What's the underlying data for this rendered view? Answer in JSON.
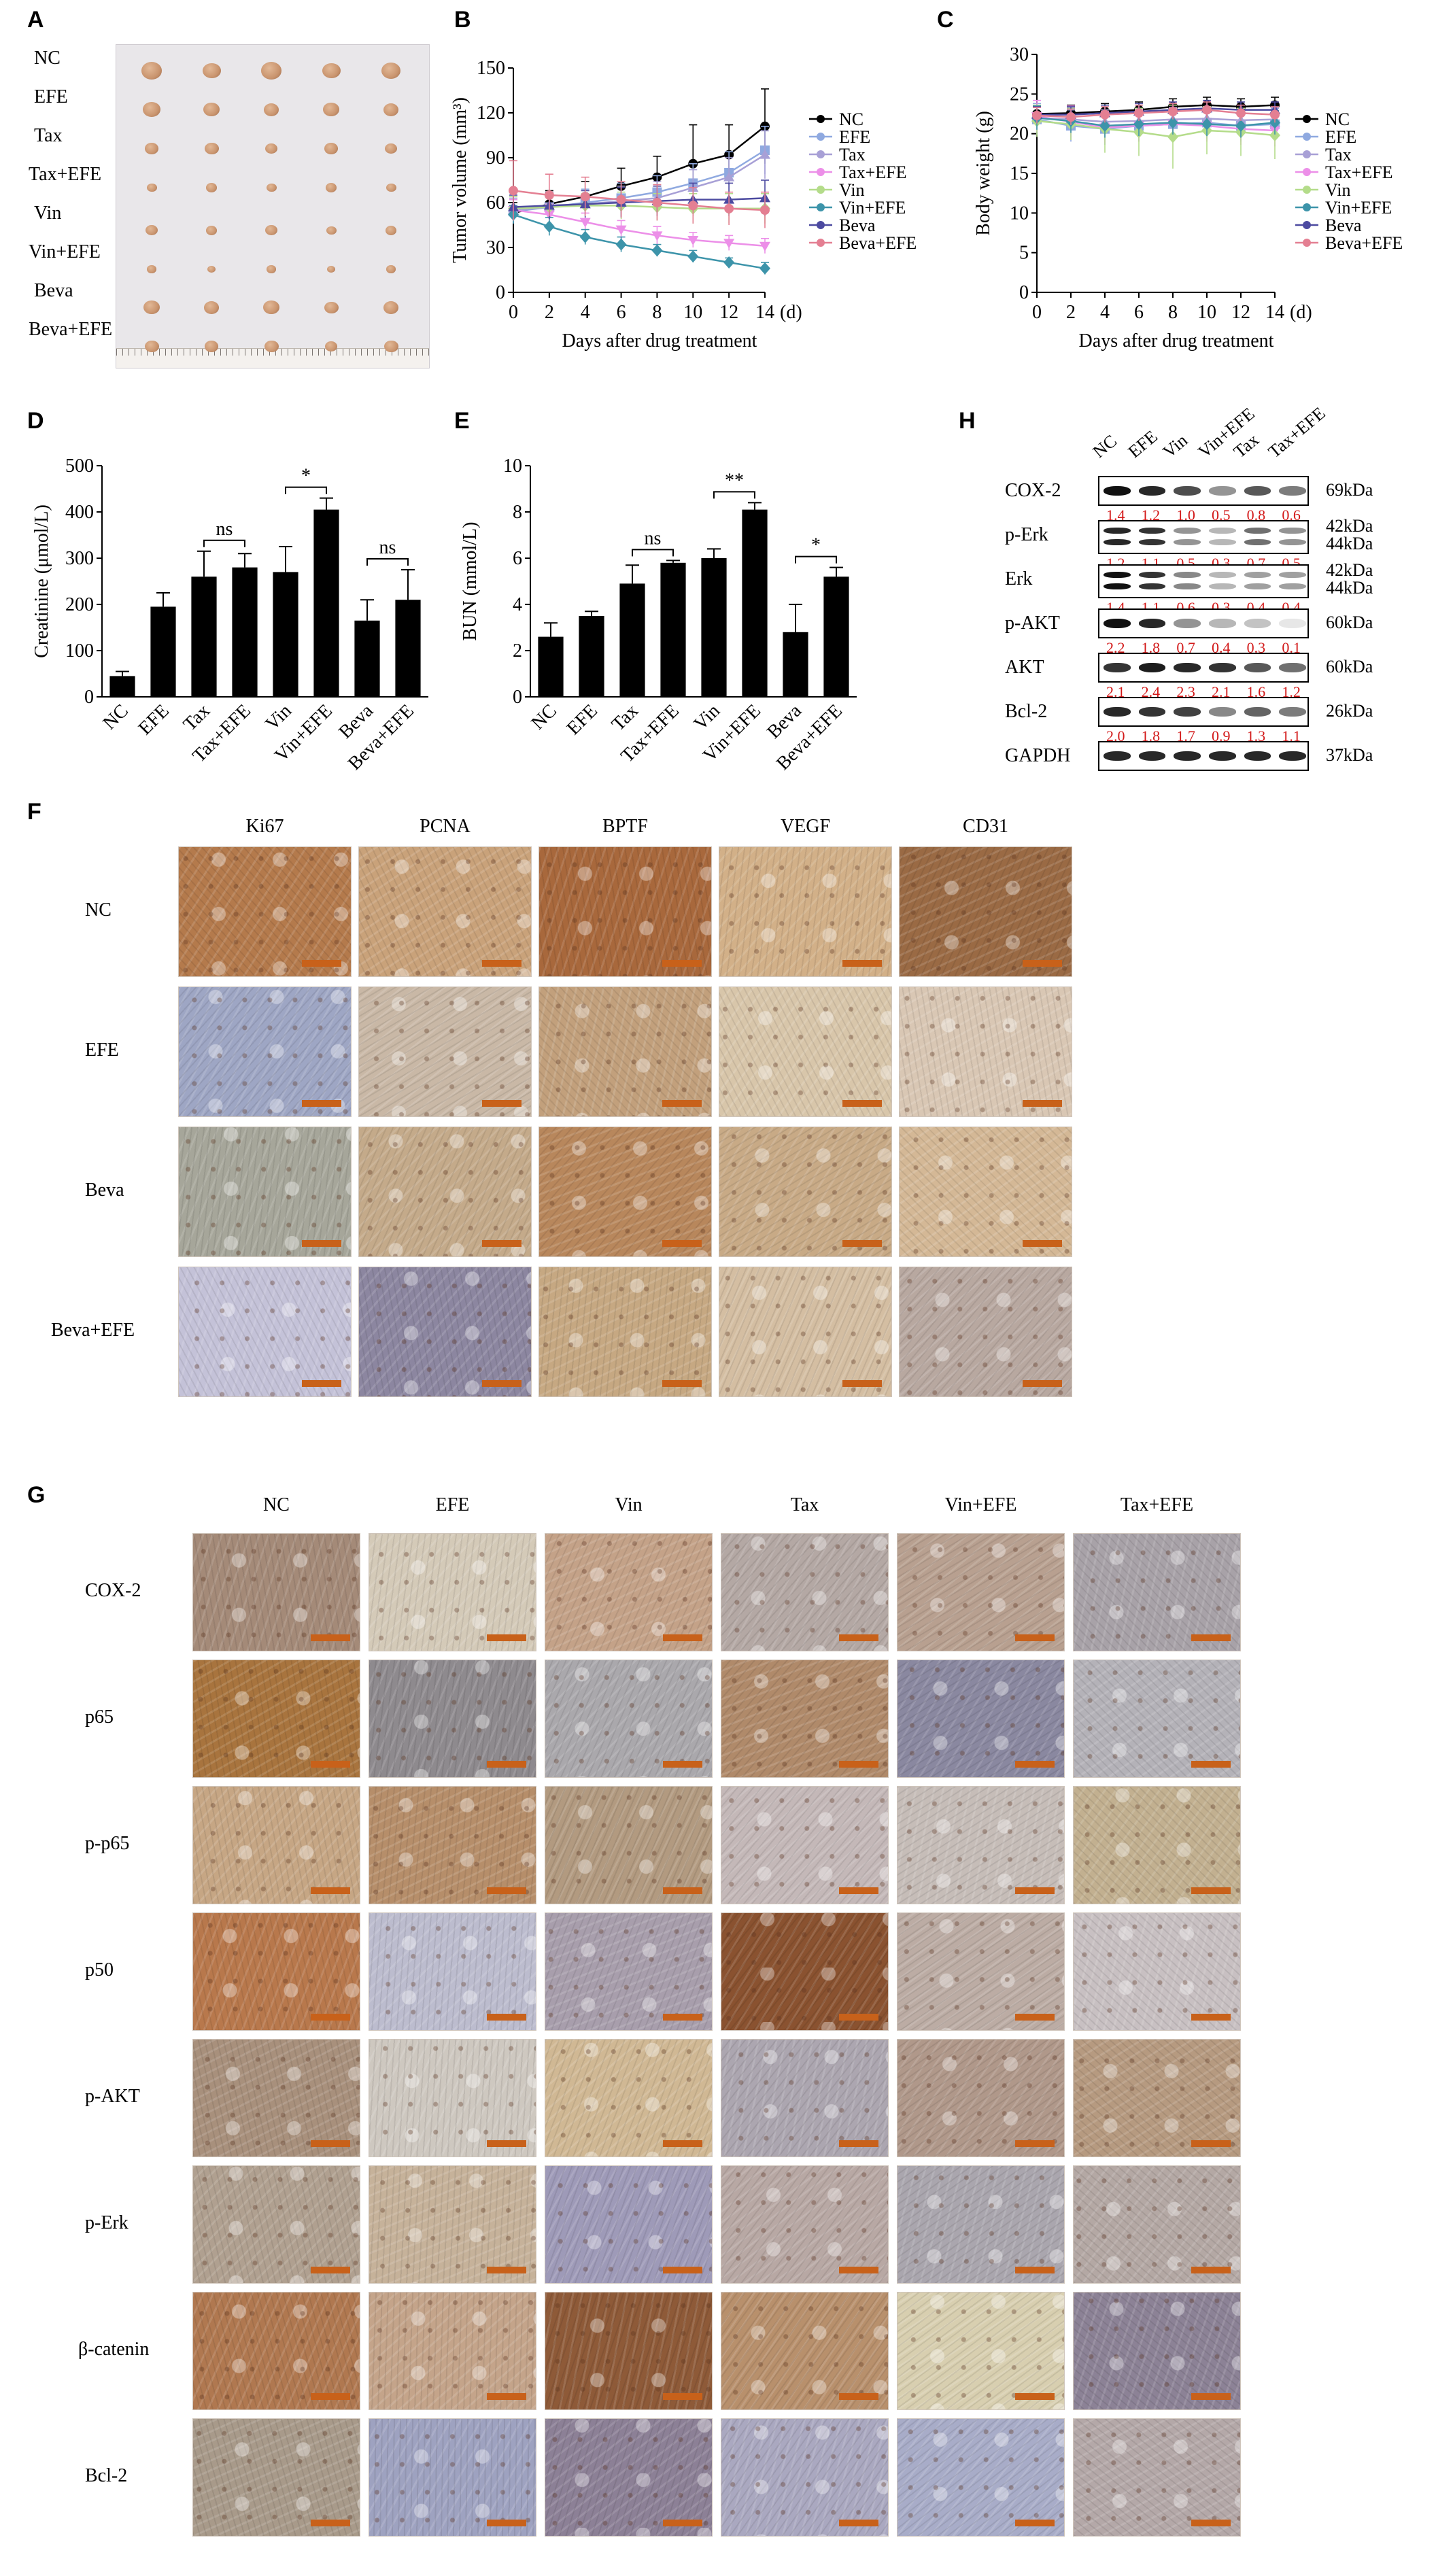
{
  "panels": {
    "A": "A",
    "B": "B",
    "C": "C",
    "D": "D",
    "E": "E",
    "F": "F",
    "G": "G",
    "H": "H"
  },
  "panel_a": {
    "groups": [
      "NC",
      "EFE",
      "Tax",
      "Tax+EFE",
      "Vin",
      "Vin+EFE",
      "Beva",
      "Beva+EFE"
    ],
    "tumor_sizes": [
      [
        1.0,
        0.9,
        1.0,
        0.9,
        0.95
      ],
      [
        0.85,
        0.8,
        0.75,
        0.8,
        0.75
      ],
      [
        0.65,
        0.7,
        0.6,
        0.65,
        0.6
      ],
      [
        0.5,
        0.55,
        0.5,
        0.55,
        0.5
      ],
      [
        0.6,
        0.55,
        0.6,
        0.5,
        0.55
      ],
      [
        0.45,
        0.4,
        0.45,
        0.4,
        0.45
      ],
      [
        0.8,
        0.75,
        0.8,
        0.7,
        0.75
      ],
      [
        0.7,
        0.65,
        0.7,
        0.6,
        0.7
      ]
    ],
    "colors": {
      "paper": "#e9e7ea",
      "tumor": "#c9946e",
      "ruler": "#f4f1ee"
    }
  },
  "legend": [
    "NC",
    "EFE",
    "Tax",
    "Tax+EFE",
    "Vin",
    "Vin+EFE",
    "Beva",
    "Beva+EFE"
  ],
  "series_colors": [
    "#000000",
    "#8fa9e0",
    "#a8a0d6",
    "#ec8fe8",
    "#b4dc8a",
    "#3d94aa",
    "#4c4aa0",
    "#e47f92"
  ],
  "chart_data": [
    {
      "id": "B",
      "type": "line",
      "ylabel": "Tumor volume  (mm³)",
      "xlabel": "Days after drug treatment",
      "x_unit": "(d)",
      "x": [
        0,
        2,
        4,
        6,
        8,
        10,
        12,
        14
      ],
      "xlim": [
        0,
        14
      ],
      "ylim": [
        0,
        150
      ],
      "yticks": [
        0,
        30,
        60,
        90,
        120,
        150
      ],
      "series": [
        {
          "name": "NC",
          "values": [
            53,
            59,
            64,
            71,
            77,
            86,
            92,
            111
          ],
          "err": [
            7,
            9,
            10,
            12,
            14,
            26,
            20,
            25
          ]
        },
        {
          "name": "EFE",
          "values": [
            54,
            57,
            60,
            63,
            67,
            73,
            80,
            95
          ],
          "err": [
            8,
            9,
            9,
            10,
            11,
            13,
            14,
            16
          ]
        },
        {
          "name": "Tax",
          "values": [
            55,
            57,
            59,
            61,
            63,
            70,
            77,
            92
          ],
          "err": [
            8,
            8,
            9,
            10,
            11,
            12,
            13,
            16
          ]
        },
        {
          "name": "Tax+EFE",
          "values": [
            55,
            52,
            47,
            42,
            38,
            35,
            33,
            31
          ],
          "err": [
            7,
            7,
            6,
            6,
            6,
            5,
            5,
            5
          ]
        },
        {
          "name": "Vin",
          "values": [
            56,
            57,
            58,
            58,
            57,
            56,
            56,
            56
          ],
          "err": [
            8,
            8,
            8,
            9,
            9,
            10,
            10,
            10
          ]
        },
        {
          "name": "Vin+EFE",
          "values": [
            52,
            44,
            37,
            32,
            28,
            24,
            20,
            16
          ],
          "err": [
            6,
            6,
            5,
            5,
            4,
            4,
            3,
            4
          ]
        },
        {
          "name": "Beva",
          "values": [
            57,
            58,
            59,
            60,
            61,
            62,
            62,
            63
          ],
          "err": [
            8,
            9,
            9,
            10,
            10,
            11,
            11,
            12
          ]
        },
        {
          "name": "Beva+EFE",
          "values": [
            68,
            65,
            64,
            62,
            60,
            58,
            56,
            55
          ],
          "err": [
            20,
            14,
            13,
            12,
            12,
            12,
            11,
            12
          ]
        }
      ]
    },
    {
      "id": "C",
      "type": "line",
      "ylabel": "Body weight  (g)",
      "xlabel": "Days after drug treatment",
      "x_unit": "(d)",
      "x": [
        0,
        2,
        4,
        6,
        8,
        10,
        12,
        14
      ],
      "xlim": [
        0,
        14
      ],
      "ylim": [
        0,
        30
      ],
      "yticks": [
        0,
        5,
        10,
        15,
        20,
        25,
        30
      ],
      "series": [
        {
          "name": "NC",
          "values": [
            22.5,
            22.6,
            22.8,
            23.0,
            23.4,
            23.6,
            23.4,
            23.6
          ],
          "err": [
            1,
            1,
            1,
            1,
            1,
            1,
            1,
            1
          ]
        },
        {
          "name": "EFE",
          "values": [
            21.8,
            21.0,
            20.6,
            21.0,
            21.2,
            21.4,
            21.0,
            21.2
          ],
          "err": [
            2,
            2,
            2,
            2,
            2,
            2,
            2,
            2
          ]
        },
        {
          "name": "Tax",
          "values": [
            22.0,
            21.8,
            21.5,
            21.6,
            21.8,
            21.9,
            21.7,
            21.8
          ],
          "err": [
            1.5,
            1.5,
            1.5,
            1.5,
            1.5,
            1.5,
            1.5,
            1.5
          ]
        },
        {
          "name": "Tax+EFE",
          "values": [
            22.2,
            21.5,
            20.8,
            21.0,
            21.2,
            21.0,
            20.6,
            20.4
          ],
          "err": [
            2,
            2,
            2,
            2,
            2,
            2,
            2,
            2
          ]
        },
        {
          "name": "Vin",
          "values": [
            21.6,
            21.2,
            20.6,
            20.2,
            19.6,
            20.4,
            20.2,
            19.8
          ],
          "err": [
            2,
            2,
            3,
            3,
            4,
            3,
            3,
            3
          ]
        },
        {
          "name": "Vin+EFE",
          "values": [
            22.0,
            21.6,
            21.0,
            21.2,
            21.4,
            21.2,
            21.0,
            21.4
          ],
          "err": [
            1.5,
            1.5,
            1.5,
            1.5,
            1.5,
            1.5,
            1.5,
            1.5
          ]
        },
        {
          "name": "Beva",
          "values": [
            22.4,
            22.4,
            22.6,
            22.8,
            23.0,
            23.2,
            23.0,
            23.0
          ],
          "err": [
            1,
            1,
            1,
            1,
            1,
            1,
            1,
            1
          ]
        },
        {
          "name": "Beva+EFE",
          "values": [
            22.3,
            22.1,
            22.4,
            22.6,
            22.8,
            23.0,
            22.6,
            22.4
          ],
          "err": [
            1,
            1,
            1,
            1,
            1,
            1,
            1,
            1
          ]
        }
      ]
    },
    {
      "id": "D",
      "type": "bar",
      "ylabel": "Creatinine  (μmol/L)",
      "categories": [
        "NC",
        "EFE",
        "Tax",
        "Tax+EFE",
        "Vin",
        "Vin+EFE",
        "Beva",
        "Beva+EFE"
      ],
      "values": [
        45,
        195,
        260,
        280,
        270,
        405,
        165,
        210
      ],
      "err": [
        10,
        30,
        55,
        30,
        55,
        25,
        45,
        65
      ],
      "ylim": [
        0,
        500
      ],
      "yticks": [
        0,
        100,
        200,
        300,
        400,
        500
      ],
      "sig": [
        {
          "from": 2,
          "to": 3,
          "label": "ns"
        },
        {
          "from": 4,
          "to": 5,
          "label": "*"
        },
        {
          "from": 6,
          "to": 7,
          "label": "ns"
        }
      ]
    },
    {
      "id": "E",
      "type": "bar",
      "ylabel": "BUN  (mmol/L)",
      "categories": [
        "NC",
        "EFE",
        "Tax",
        "Tax+EFE",
        "Vin",
        "Vin+EFE",
        "Beva",
        "Beva+EFE"
      ],
      "values": [
        2.6,
        3.5,
        4.9,
        5.8,
        6.0,
        8.1,
        2.8,
        5.2
      ],
      "err": [
        0.6,
        0.2,
        0.8,
        0.1,
        0.4,
        0.3,
        1.2,
        0.4
      ],
      "ylim": [
        0,
        10
      ],
      "yticks": [
        0,
        2,
        4,
        6,
        8,
        10
      ],
      "sig": [
        {
          "from": 2,
          "to": 3,
          "label": "ns"
        },
        {
          "from": 4,
          "to": 5,
          "label": "**"
        },
        {
          "from": 6,
          "to": 7,
          "label": "*"
        }
      ]
    }
  ],
  "panel_h": {
    "lanes": [
      "NC",
      "EFE",
      "Vin",
      "Vin+EFE",
      "Tax",
      "Tax+EFE"
    ],
    "rows": [
      {
        "name": "COX-2",
        "kda": [
          "69kDa"
        ],
        "q": [
          "1.4",
          "1.2",
          "1.0",
          "0.5",
          "0.8",
          "0.6"
        ],
        "intensity": [
          1.0,
          0.9,
          0.75,
          0.45,
          0.7,
          0.55
        ]
      },
      {
        "name": "p-Erk",
        "kda": [
          "42kDa",
          "44kDa"
        ],
        "q": [
          "1.2",
          "1.1",
          "0.5",
          "0.3",
          "0.7",
          "0.5"
        ],
        "intensity": [
          0.9,
          0.85,
          0.45,
          0.3,
          0.6,
          0.45
        ]
      },
      {
        "name": "Erk",
        "kda": [
          "42kDa",
          "44kDa"
        ],
        "q": [
          "1.4",
          "1.1",
          "0.6",
          "0.3",
          "0.4",
          "0.4"
        ],
        "intensity": [
          1.0,
          0.85,
          0.5,
          0.3,
          0.4,
          0.4
        ]
      },
      {
        "name": "p-AKT",
        "kda": [
          "60kDa"
        ],
        "q": [
          "2.2",
          "1.8",
          "0.7",
          "0.4",
          "0.3",
          "0.1"
        ],
        "intensity": [
          1.0,
          0.9,
          0.45,
          0.3,
          0.25,
          0.1
        ]
      },
      {
        "name": "AKT",
        "kda": [
          "60kDa"
        ],
        "q": [
          "2.1",
          "2.4",
          "2.3",
          "2.1",
          "1.6",
          "1.2"
        ],
        "intensity": [
          0.85,
          0.95,
          0.9,
          0.85,
          0.7,
          0.6
        ]
      },
      {
        "name": "Bcl-2",
        "kda": [
          "26kDa"
        ],
        "q": [
          "2.0",
          "1.8",
          "1.7",
          "0.9",
          "1.3",
          "1.1"
        ],
        "intensity": [
          0.9,
          0.85,
          0.8,
          0.5,
          0.65,
          0.55
        ]
      },
      {
        "name": "GAPDH",
        "kda": [
          "37kDa"
        ],
        "q": [],
        "intensity": [
          0.9,
          0.9,
          0.9,
          0.9,
          0.9,
          0.9
        ]
      }
    ]
  },
  "panel_f": {
    "columns": [
      "Ki67",
      "PCNA",
      "BPTF",
      "VEGF",
      "CD31"
    ],
    "rows": [
      "NC",
      "EFE",
      "Beva",
      "Beva+EFE"
    ],
    "stain": [
      [
        "#b47a4c",
        "#c9a27a",
        "#a8683c",
        "#d2b088",
        "#9a6a44"
      ],
      [
        "#9ea6c4",
        "#c9b8a6",
        "#c2a07c",
        "#d8c6aa",
        "#d9c7b4"
      ],
      [
        "#a6a69a",
        "#c4aa8a",
        "#b8875c",
        "#c8aa86",
        "#d4b896"
      ],
      [
        "#c4c2d8",
        "#8c86a0",
        "#c6a882",
        "#d4bea2",
        "#b8a8a0"
      ]
    ]
  },
  "panel_g": {
    "columns": [
      "NC",
      "EFE",
      "Vin",
      "Tax",
      "Vin+EFE",
      "Tax+EFE"
    ],
    "rows": [
      "COX-2",
      "p65",
      "p-p65",
      "p50",
      "p-AKT",
      "p-Erk",
      "β-catenin",
      "Bcl-2"
    ],
    "stain": [
      [
        "#a48a78",
        "#d4cab8",
        "#c4a288",
        "#b4a8a4",
        "#b8a090",
        "#a8a2a8"
      ],
      [
        "#a8743e",
        "#8e8a8e",
        "#aaa8ac",
        "#b08a6a",
        "#8a88a0",
        "#b4b2b8"
      ],
      [
        "#c6a684",
        "#b68e6a",
        "#b29a80",
        "#c4b8b8",
        "#c6bdb8",
        "#c2b090"
      ],
      [
        "#b8784c",
        "#bcbcce",
        "#a89eac",
        "#8a5230",
        "#bcaca4",
        "#c8c0c2"
      ],
      [
        "#a8907c",
        "#cec8c0",
        "#d0b894",
        "#aca6b0",
        "#b0988a",
        "#b69a80"
      ],
      [
        "#b0a090",
        "#c6b29a",
        "#9e9ab8",
        "#b8a8a4",
        "#aaa6ae",
        "#b4a8a4"
      ],
      [
        "#b07850",
        "#c4a48a",
        "#8e5a38",
        "#b8906c",
        "#d8cfb0",
        "#8c8296"
      ],
      [
        "#a89a8a",
        "#9ea2c0",
        "#8c8096",
        "#aaa8c0",
        "#a8acc8",
        "#b4a8a8"
      ]
    ]
  }
}
